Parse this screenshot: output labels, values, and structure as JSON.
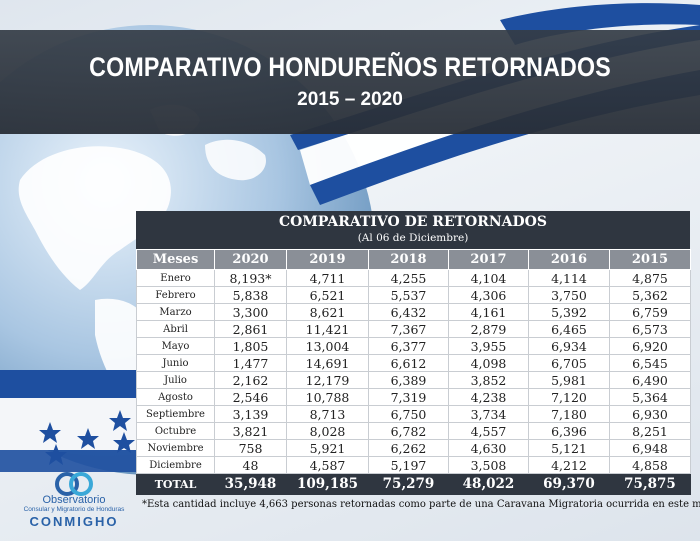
{
  "header": {
    "title": "COMPARATIVO HONDUREÑOS RETORNADOS",
    "subtitle": "2015 – 2020"
  },
  "table": {
    "title": "COMPARATIVO DE RETORNADOS",
    "subtitle": "(Al 06 de Diciembre)",
    "columns": [
      "Meses",
      "2020",
      "2019",
      "2018",
      "2017",
      "2016",
      "2015"
    ],
    "rows": [
      [
        "Enero",
        "8,193*",
        "4,711",
        "4,255",
        "4,104",
        "4,114",
        "4,875"
      ],
      [
        "Febrero",
        "5,838",
        "6,521",
        "5,537",
        "4,306",
        "3,750",
        "5,362"
      ],
      [
        "Marzo",
        "3,300",
        "8,621",
        "6,432",
        "4,161",
        "5,392",
        "6,759"
      ],
      [
        "Abril",
        "2,861",
        "11,421",
        "7,367",
        "2,879",
        "6,465",
        "6,573"
      ],
      [
        "Mayo",
        "1,805",
        "13,004",
        "6,377",
        "3,955",
        "6,934",
        "6,920"
      ],
      [
        "Junio",
        "1,477",
        "14,691",
        "6,612",
        "4,098",
        "6,705",
        "6,545"
      ],
      [
        "Julio",
        "2,162",
        "12,179",
        "6,389",
        "3,852",
        "5,981",
        "6,490"
      ],
      [
        "Agosto",
        "2,546",
        "10,788",
        "7,319",
        "4,238",
        "7,120",
        "5,364"
      ],
      [
        "Septiembre",
        "3,139",
        "8,713",
        "6,750",
        "3,734",
        "7,180",
        "6,930"
      ],
      [
        "Octubre",
        "3,821",
        "8,028",
        "6,782",
        "4,557",
        "6,396",
        "8,251"
      ],
      [
        "Noviembre",
        "758",
        "5,921",
        "6,262",
        "4,630",
        "5,121",
        "6,948"
      ],
      [
        "Diciembre",
        "48",
        "4,587",
        "5,197",
        "3,508",
        "4,212",
        "4,858"
      ]
    ],
    "total": [
      "TOTAL",
      "35,948",
      "109,185",
      "75,279",
      "48,022",
      "69,370",
      "75,875"
    ]
  },
  "note": "*Esta cantidad incluye 4,663 personas retornadas como parte de una Caravana Migratoria ocurrida en este mes.",
  "logo": {
    "line1": "Observatorio",
    "line2": "Consular y Migratorio de Honduras",
    "line3": "CONMIGHO"
  },
  "colors": {
    "banner": "#343c46",
    "table_header": "#2f3640",
    "column_header": "#8a8f97",
    "flag_blue": "#1e4fa0"
  },
  "chart_data": {
    "type": "table",
    "title": "COMPARATIVO DE RETORNADOS",
    "subtitle": "(Al 06 de Diciembre)",
    "categories": [
      "Enero",
      "Febrero",
      "Marzo",
      "Abril",
      "Mayo",
      "Junio",
      "Julio",
      "Agosto",
      "Septiembre",
      "Octubre",
      "Noviembre",
      "Diciembre"
    ],
    "series": [
      {
        "name": "2020",
        "values": [
          8193,
          5838,
          3300,
          2861,
          1805,
          1477,
          2162,
          2546,
          3139,
          3821,
          758,
          48
        ],
        "total": 35948
      },
      {
        "name": "2019",
        "values": [
          4711,
          6521,
          8621,
          11421,
          13004,
          14691,
          12179,
          10788,
          8713,
          8028,
          5921,
          4587
        ],
        "total": 109185
      },
      {
        "name": "2018",
        "values": [
          4255,
          5537,
          6432,
          7367,
          6377,
          6612,
          6389,
          7319,
          6750,
          6782,
          6262,
          5197
        ],
        "total": 75279
      },
      {
        "name": "2017",
        "values": [
          4104,
          4306,
          4161,
          2879,
          3955,
          4098,
          3852,
          4238,
          3734,
          4557,
          4630,
          3508
        ],
        "total": 48022
      },
      {
        "name": "2016",
        "values": [
          4114,
          3750,
          5392,
          6465,
          6934,
          6705,
          5981,
          7120,
          7180,
          6396,
          5121,
          4212
        ],
        "total": 69370
      },
      {
        "name": "2015",
        "values": [
          4875,
          5362,
          6759,
          6573,
          6920,
          6545,
          6490,
          5364,
          6930,
          8251,
          6948,
          4858
        ],
        "total": 75875
      }
    ]
  }
}
